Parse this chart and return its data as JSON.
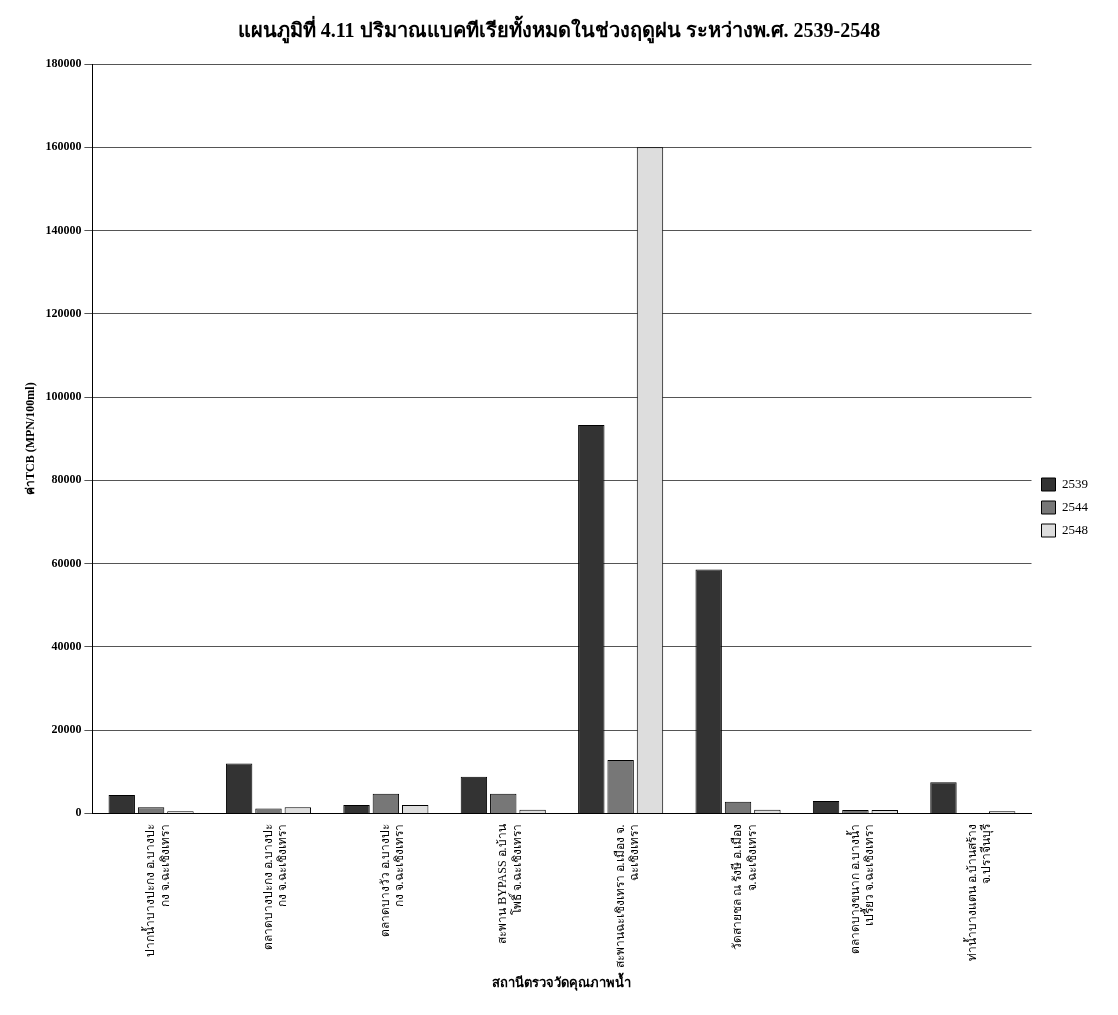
{
  "chart_data": {
    "type": "bar",
    "title": "แผนภูมิที่ 4.11 ปริมาณแบคทีเรียทั้งหมดในช่วงฤดูฝน ระหว่างพ.ศ. 2539-2548",
    "ylabel": "ค่าTCB (MPN/100ml)",
    "xlabel": "สถานีตรวจวัดคุณภาพน้ำ",
    "categories": [
      "ปากน้ำบางปะกง อ.บางปะ\nกง จ.ฉะเชิงเทรา",
      "ตลาดบางปะกง อ.บางปะ\nกง จ.ฉะเชิงเทรา",
      "ตลาดบางวัว อ.บางปะ\nกง จ.ฉะเชิงเทรา",
      "สะพาน BYPASS อ.บ้าน\nโพธิ์ จ.ฉะเชิงเทรา",
      "สะพานฉะเชิงเทรา อ.เมือง จ.\nฉะเชิงเทรา",
      "วัดสายชล ณ รังษี อ.เมือง\nจ.ฉะเชิงเทรา",
      "ตลาดบางขนาก อ.บางน้ำ\nเปรี้ยว จ.ฉะเชิงเทรา",
      "ท่าน้ำบางแตน อ.บ้านสร้าง\nจ.ปราจีนบุรี"
    ],
    "series": [
      {
        "name": "2539",
        "color": "#333333",
        "values": [
          4400,
          12000,
          2000,
          8800,
          93300,
          58600,
          3000,
          7500
        ]
      },
      {
        "name": "2544",
        "color": "#777777",
        "values": [
          1500,
          1200,
          4700,
          4700,
          12800,
          2800,
          800,
          null
        ]
      },
      {
        "name": "2548",
        "color": "#dddddd",
        "values": [
          500,
          1500,
          2000,
          900,
          160000,
          900,
          800,
          500
        ]
      }
    ],
    "ylim": [
      0,
      180000
    ],
    "yticks": [
      0,
      20000,
      40000,
      60000,
      80000,
      100000,
      120000,
      140000,
      160000,
      180000
    ],
    "grid": "y",
    "legend": "right"
  }
}
